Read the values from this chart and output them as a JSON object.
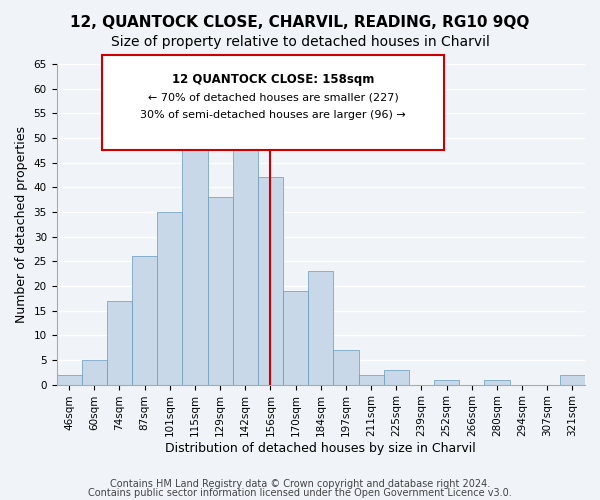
{
  "title": "12, QUANTOCK CLOSE, CHARVIL, READING, RG10 9QQ",
  "subtitle": "Size of property relative to detached houses in Charvil",
  "xlabel": "Distribution of detached houses by size in Charvil",
  "ylabel": "Number of detached properties",
  "bin_labels": [
    "46sqm",
    "60sqm",
    "74sqm",
    "87sqm",
    "101sqm",
    "115sqm",
    "129sqm",
    "142sqm",
    "156sqm",
    "170sqm",
    "184sqm",
    "197sqm",
    "211sqm",
    "225sqm",
    "239sqm",
    "252sqm",
    "266sqm",
    "280sqm",
    "294sqm",
    "307sqm",
    "321sqm"
  ],
  "bar_heights": [
    2,
    5,
    17,
    26,
    35,
    49,
    38,
    54,
    42,
    19,
    23,
    7,
    2,
    3,
    0,
    1,
    0,
    1,
    0,
    0,
    2
  ],
  "bar_color": "#c8d8e8",
  "bar_edge_color": "#6699bb",
  "marker_index": 8,
  "marker_label": "156sqm",
  "marker_color": "#cc0000",
  "annotation_title": "12 QUANTOCK CLOSE: 158sqm",
  "annotation_line1": "← 70% of detached houses are smaller (227)",
  "annotation_line2": "30% of semi-detached houses are larger (96) →",
  "annotation_box_color": "#ffffff",
  "annotation_box_edge": "#cc0000",
  "ylim": [
    0,
    65
  ],
  "yticks": [
    0,
    5,
    10,
    15,
    20,
    25,
    30,
    35,
    40,
    45,
    50,
    55,
    60,
    65
  ],
  "footer_line1": "Contains HM Land Registry data © Crown copyright and database right 2024.",
  "footer_line2": "Contains public sector information licensed under the Open Government Licence v3.0.",
  "background_color": "#f0f4f8",
  "grid_color": "#ffffff",
  "title_fontsize": 11,
  "subtitle_fontsize": 10,
  "axis_label_fontsize": 9,
  "tick_fontsize": 7.5,
  "footer_fontsize": 7
}
